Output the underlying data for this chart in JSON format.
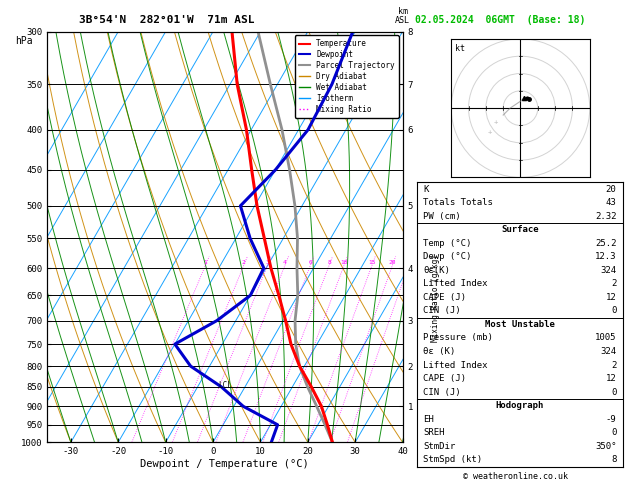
{
  "title_left": "3B°54'N  282°01'W  71m ASL",
  "title_right": "02.05.2024  06GMT  (Base: 18)",
  "xlabel": "Dewpoint / Temperature (°C)",
  "ylabel_left": "hPa",
  "copyright": "© weatheronline.co.uk",
  "pressure_levels": [
    300,
    350,
    400,
    450,
    500,
    550,
    600,
    650,
    700,
    750,
    800,
    850,
    900,
    950,
    1000
  ],
  "xlim": [
    -35,
    40
  ],
  "temp_profile_p": [
    1000,
    950,
    900,
    850,
    800,
    750,
    700,
    650,
    600,
    550,
    500,
    450,
    400,
    350,
    300
  ],
  "temp_profile_T": [
    25.2,
    22.0,
    18.5,
    14.0,
    9.0,
    4.5,
    0.5,
    -4.0,
    -9.0,
    -14.0,
    -19.5,
    -25.0,
    -31.0,
    -38.5,
    -46.0
  ],
  "dewp_profile_p": [
    1000,
    950,
    900,
    850,
    800,
    750,
    700,
    650,
    600,
    550,
    500,
    450,
    400,
    350,
    300
  ],
  "dewp_profile_T": [
    12.3,
    11.5,
    2.0,
    -5.0,
    -14.0,
    -20.0,
    -14.0,
    -10.0,
    -10.5,
    -17.0,
    -23.0,
    -20.0,
    -18.0,
    -18.5,
    -20.5
  ],
  "parcel_p": [
    1000,
    950,
    900,
    850,
    800,
    750,
    700,
    650,
    600,
    550,
    500,
    450,
    400,
    350,
    300
  ],
  "parcel_T": [
    25.2,
    21.5,
    17.5,
    13.2,
    9.0,
    5.5,
    2.5,
    0.0,
    -3.5,
    -7.0,
    -11.5,
    -17.0,
    -23.5,
    -31.5,
    -40.5
  ],
  "skew_factor": 50.0,
  "km_ticks": {
    "8": 300,
    "7": 350,
    "6": 400,
    "5": 500,
    "4": 600,
    "3": 700,
    "2": 800,
    "1": 900
  },
  "lcl_pressure": 847,
  "mr_values": [
    1,
    2,
    3,
    4,
    6,
    8,
    10,
    15,
    20,
    25
  ],
  "color_temp": "#FF0000",
  "color_dewp": "#0000CC",
  "color_parcel": "#909090",
  "color_dry_adiabat": "#CC8800",
  "color_wet_adiabat": "#008800",
  "color_isotherm": "#0099FF",
  "color_mixing_ratio": "#FF00FF",
  "color_bg": "#FFFFFF",
  "info_K": 20,
  "info_TT": 43,
  "info_PW": 2.32,
  "info_surf_temp": 25.2,
  "info_surf_dewp": 12.3,
  "info_surf_theta_e": 324,
  "info_surf_LI": 2,
  "info_surf_CAPE": 12,
  "info_surf_CIN": 0,
  "info_mu_pressure": 1005,
  "info_mu_theta_e": 324,
  "info_mu_LI": 2,
  "info_mu_CAPE": 12,
  "info_mu_CIN": 0,
  "info_EH": -9,
  "info_SREH": 0,
  "info_StmDir": "350°",
  "info_StmSpd": 8
}
